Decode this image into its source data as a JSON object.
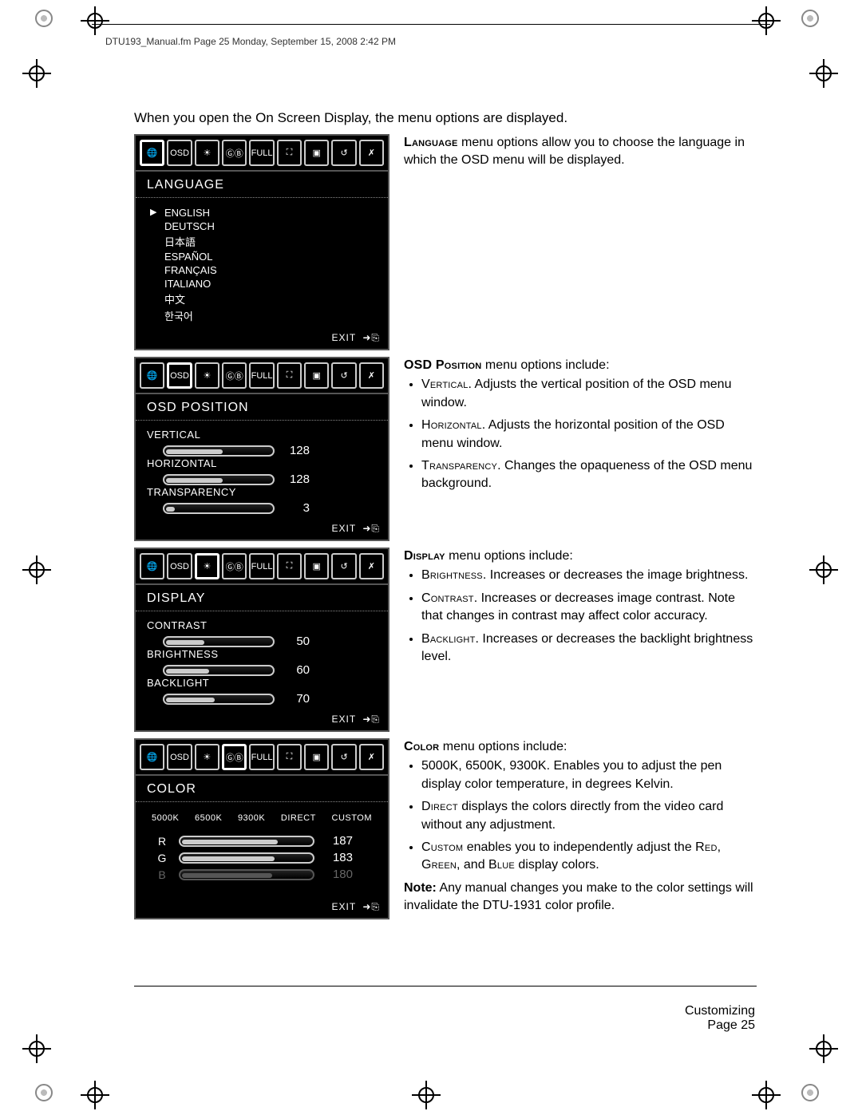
{
  "header": "DTU193_Manual.fm  Page 25  Monday, September 15, 2008  2:42 PM",
  "intro": "When you open the On Screen Display, the menu options are displayed.",
  "osd_exit_label": "EXIT",
  "language_panel": {
    "title": "LANGUAGE",
    "items": [
      "ENGLISH",
      "DEUTSCH",
      "日本語",
      "ESPAÑOL",
      "FRANÇAIS",
      "ITALIANO",
      "中文",
      "한국어"
    ],
    "selected_index": 0
  },
  "language_desc": {
    "title": "Language",
    "text": " menu options allow you to choose the language in which the OSD menu will be displayed."
  },
  "osd_position_panel": {
    "title": "OSD  POSITION",
    "sliders": [
      {
        "label": "VERTICAL",
        "value": 128,
        "fill_pct": 52
      },
      {
        "label": "HORIZONTAL",
        "value": 128,
        "fill_pct": 52
      },
      {
        "label": "TRANSPARENCY",
        "value": 3,
        "fill_pct": 8
      }
    ]
  },
  "osd_position_desc": {
    "title": "OSD Position",
    "lead": " menu options include:",
    "items": [
      {
        "key": "Vertical",
        "text": ".  Adjusts the vertical position of the OSD menu window."
      },
      {
        "key": "Horizontal",
        "text": ".  Adjusts the horizontal position of the OSD menu window."
      },
      {
        "key": "Transparency",
        "text": ".  Changes the opaqueness of the OSD menu background."
      }
    ]
  },
  "display_panel": {
    "title": "DISPLAY",
    "sliders": [
      {
        "label": "CONTRAST",
        "value": 50,
        "fill_pct": 35
      },
      {
        "label": "BRIGHTNESS",
        "value": 60,
        "fill_pct": 40
      },
      {
        "label": "BACKLIGHT",
        "value": 70,
        "fill_pct": 45
      }
    ]
  },
  "display_desc": {
    "title": "Display",
    "lead": " menu options include:",
    "items": [
      {
        "key": "Brightness",
        "text": ".  Increases or decreases the image brightness."
      },
      {
        "key": "Contrast",
        "text": ".  Increases or decreases image contrast. Note that changes in contrast may affect color accuracy."
      },
      {
        "key": "Backlight",
        "text": ".  Increases or decreases the backlight brightness level."
      }
    ]
  },
  "color_panel": {
    "title": "COLOR",
    "tabs": [
      "5000K",
      "6500K",
      "9300K",
      "DIRECT",
      "CUSTOM"
    ],
    "rgb": [
      {
        "label": "R",
        "value": 187,
        "fill_pct": 72,
        "dim": false
      },
      {
        "label": "G",
        "value": 183,
        "fill_pct": 70,
        "dim": false
      },
      {
        "label": "B",
        "value": 180,
        "fill_pct": 68,
        "dim": true
      }
    ]
  },
  "color_desc": {
    "title": "Color",
    "lead": " menu options include:",
    "items_plain": "5000K, 6500K, 9300K.  Enables you to adjust the pen display color temperature, in degrees Kelvin.",
    "item_direct_key": "Direct",
    "item_direct_text": " displays the colors directly from the video card without any adjustment.",
    "item_custom_key": "Custom",
    "item_custom_text_1": " enables you to independently adjust the ",
    "rgb_words": {
      "r": "Red",
      "g": "Green",
      "b": "Blue"
    },
    "item_custom_text_2": " display colors.",
    "note_label": "Note:",
    "note_text": " Any manual changes you make to the color settings will invalidate the DTU-1931 color profile."
  },
  "footer": {
    "section": "Customizing",
    "page": "Page  25"
  },
  "osd_icon_row": [
    "🌐",
    "OSD",
    "☀",
    "ⒼⒷ",
    "FULL",
    "⛶",
    "▣",
    "↺",
    "✗"
  ]
}
